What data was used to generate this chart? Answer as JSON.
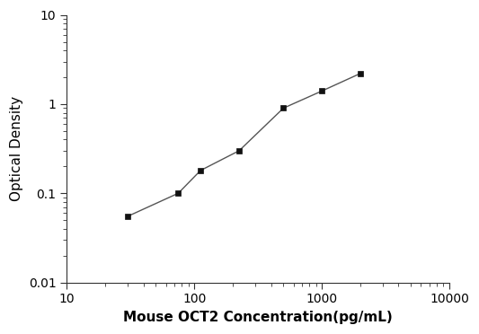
{
  "x": [
    30,
    75,
    112,
    225,
    500,
    1000,
    2000
  ],
  "y": [
    0.055,
    0.1,
    0.18,
    0.3,
    0.9,
    1.4,
    2.2
  ],
  "xlabel": "Mouse OCT2 Concentration(pg/mL)",
  "ylabel": "Optical Density",
  "xlim": [
    10,
    10000
  ],
  "ylim": [
    0.01,
    10
  ],
  "line_color": "#555555",
  "marker_color": "#111111",
  "marker": "s",
  "marker_size": 5,
  "line_width": 1.0,
  "background_color": "#ffffff",
  "xlabel_fontsize": 11,
  "ylabel_fontsize": 11,
  "tick_fontsize": 10,
  "xticks": [
    10,
    100,
    1000,
    10000
  ],
  "xtick_labels": [
    "10",
    "100",
    "1000",
    "10000"
  ],
  "yticks": [
    0.01,
    0.1,
    1,
    10
  ],
  "ytick_labels": [
    "0.01",
    "0.1",
    "1",
    "10"
  ]
}
